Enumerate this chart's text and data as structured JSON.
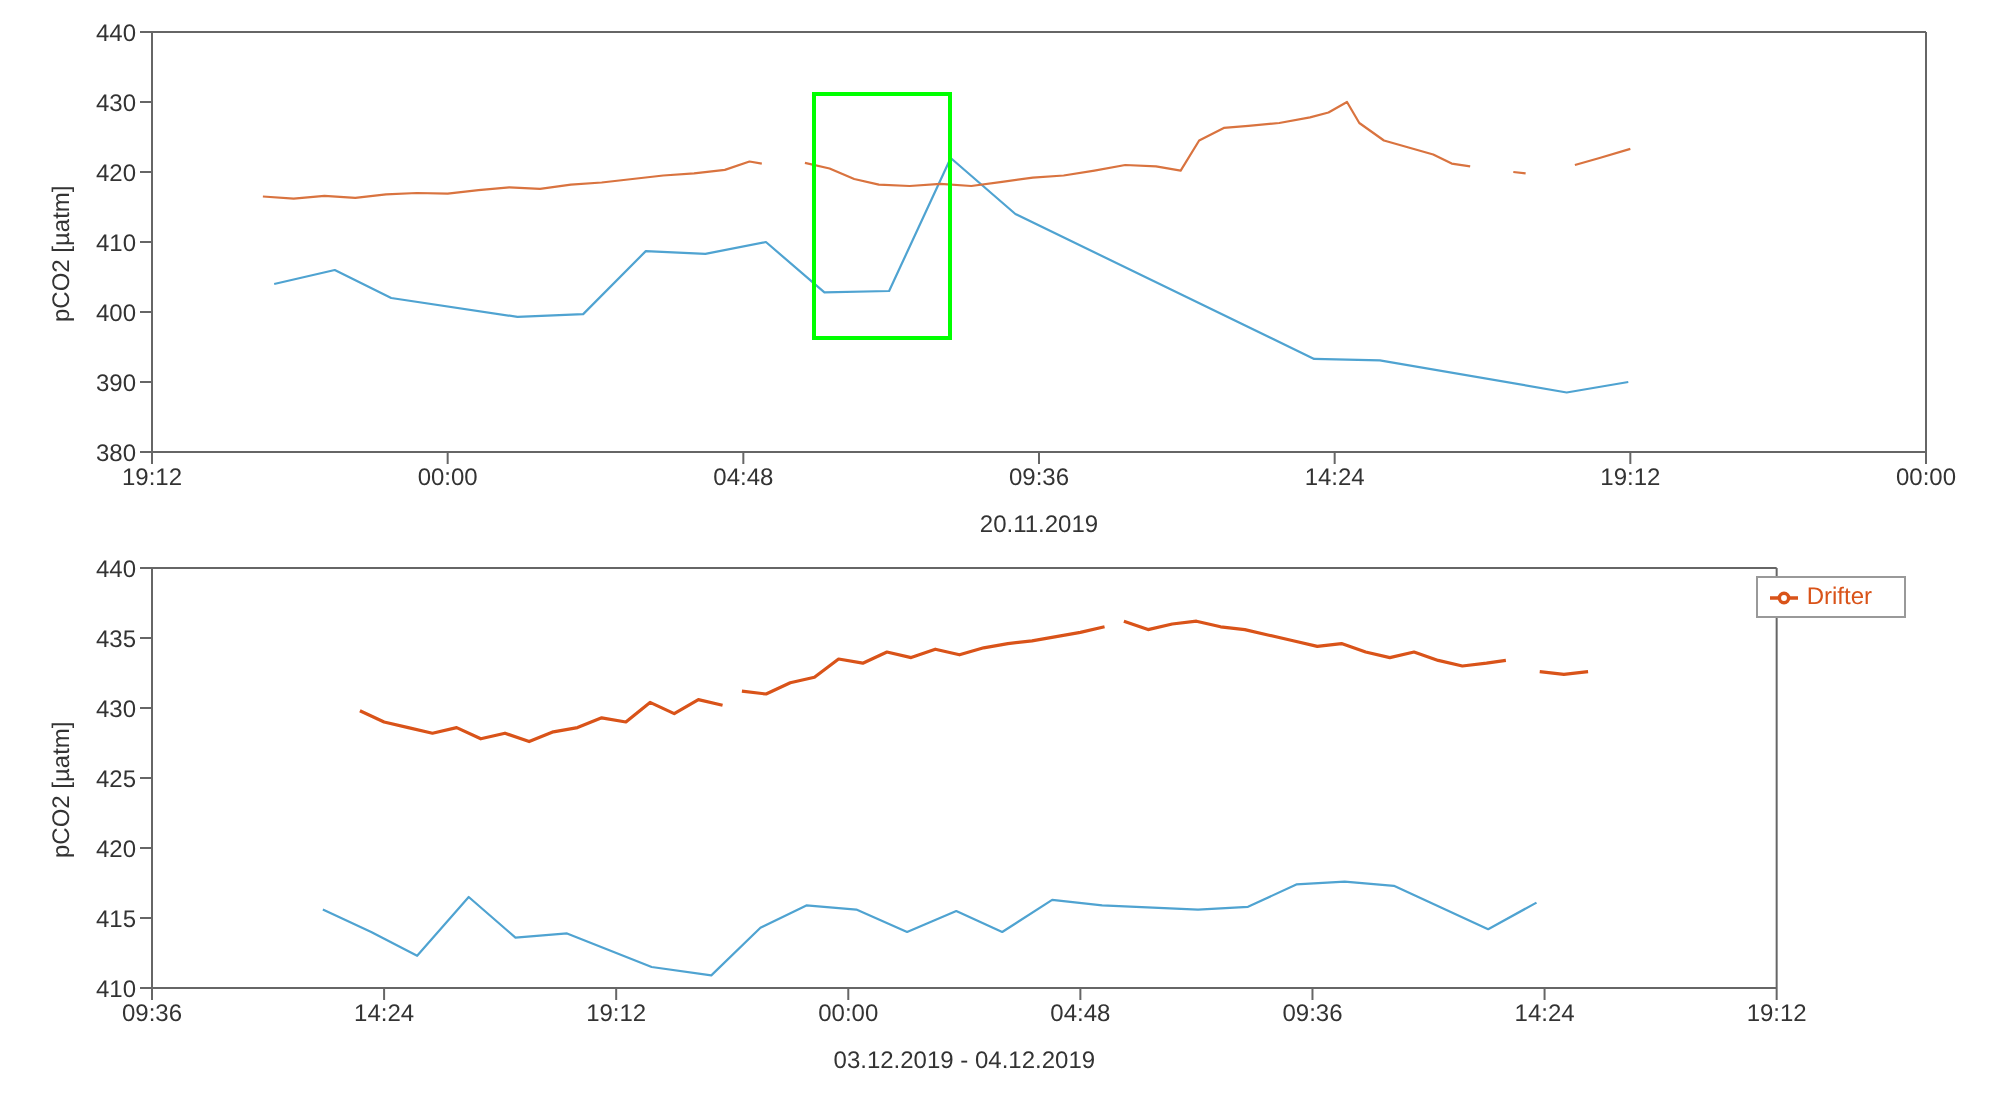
{
  "chart_data": [
    {
      "type": "line",
      "xlabel": "20.11.2019",
      "ylabel": "pCO2 [µatm]",
      "xlim": [
        "2019-11-19T19:12",
        "2019-11-21T00:00"
      ],
      "xticks": [
        {
          "value": "2019-11-19T19:12",
          "label": "19:12"
        },
        {
          "value": "2019-11-20T00:00",
          "label": "00:00"
        },
        {
          "value": "2019-11-20T04:48",
          "label": "04:48"
        },
        {
          "value": "2019-11-20T09:36",
          "label": "09:36"
        },
        {
          "value": "2019-11-20T14:24",
          "label": "14:24"
        },
        {
          "value": "2019-11-20T19:12",
          "label": "19:12"
        },
        {
          "value": "2019-11-21T00:00",
          "label": "00:00"
        }
      ],
      "ylim": [
        380,
        440
      ],
      "yticks": [
        380,
        390,
        400,
        410,
        420,
        430,
        440
      ],
      "legend": false,
      "series": [
        {
          "color": "#4fa3d1",
          "x": [
            "2019-11-19T21:11",
            "2019-11-19T22:10",
            "2019-11-19T23:05",
            "2019-11-20T01:08",
            "2019-11-20T02:12",
            "2019-11-20T03:13",
            "2019-11-20T04:11",
            "2019-11-20T05:10",
            "2019-11-20T06:07",
            "2019-11-20T07:10",
            "2019-11-20T08:10",
            "2019-11-20T09:13",
            "2019-11-20T14:04",
            "2019-11-20T15:08",
            "2019-11-20T18:10",
            "2019-11-20T19:10"
          ],
          "values": [
            404,
            406,
            402,
            399.3,
            399.7,
            408.7,
            408.3,
            410,
            402.8,
            403,
            422,
            414,
            393.3,
            393.1,
            388.5,
            390
          ]
        },
        {
          "color": "#d9733f",
          "x": [
            "2019-11-19T21:00",
            "2019-11-19T21:30",
            "2019-11-19T22:00",
            "2019-11-19T22:30",
            "2019-11-19T23:00",
            "2019-11-19T23:30",
            "2019-11-20T00:00",
            "2019-11-20T00:30",
            "2019-11-20T01:00",
            "2019-11-20T01:30",
            "2019-11-20T02:00",
            "2019-11-20T02:30",
            "2019-11-20T03:00",
            "2019-11-20T03:30",
            "2019-11-20T04:00",
            "2019-11-20T04:30",
            "2019-11-20T04:54",
            "2019-11-20T05:06",
            "2019-11-20T05:24",
            "2019-11-20T05:48",
            "2019-11-20T06:12",
            "2019-11-20T06:36",
            "2019-11-20T07:00",
            "2019-11-20T07:30",
            "2019-11-20T08:00",
            "2019-11-20T08:30",
            "2019-11-20T09:00",
            "2019-11-20T09:30",
            "2019-11-20T10:00",
            "2019-11-20T10:30",
            "2019-11-20T11:00",
            "2019-11-20T11:30",
            "2019-11-20T11:54",
            "2019-11-20T12:12",
            "2019-11-20T12:36",
            "2019-11-20T13:00",
            "2019-11-20T13:30",
            "2019-11-20T14:00",
            "2019-11-20T14:18",
            "2019-11-20T14:36",
            "2019-11-20T14:48",
            "2019-11-20T15:12",
            "2019-11-20T15:36",
            "2019-11-20T16:00",
            "2019-11-20T16:18",
            "2019-11-20T16:36",
            "2019-11-20T17:00",
            "2019-11-20T17:18",
            "2019-11-20T17:30",
            "2019-11-20T17:54",
            "2019-11-20T18:18",
            "2019-11-20T18:42",
            "2019-11-20T19:12"
          ],
          "values": [
            416.5,
            416.2,
            416.6,
            416.3,
            416.8,
            417,
            416.9,
            417.4,
            417.8,
            417.6,
            418.2,
            418.5,
            419,
            419.5,
            419.8,
            420.3,
            421.5,
            421.2,
            null,
            421.3,
            420.5,
            419,
            418.2,
            418,
            418.3,
            418,
            418.6,
            419.2,
            419.5,
            420.2,
            421,
            420.8,
            420.2,
            424.5,
            426.3,
            426.6,
            427,
            427.8,
            428.5,
            430,
            427,
            424.5,
            423.5,
            422.5,
            421.2,
            420.8,
            null,
            420,
            419.8,
            null,
            421,
            422,
            423.3
          ]
        }
      ]
    },
    {
      "type": "line",
      "xlabel": "03.12.2019 - 04.12.2019",
      "ylabel": "pCO2 [µatm]",
      "xlim": [
        "2019-12-03T09:36",
        "2019-12-04T19:12"
      ],
      "xticks": [
        {
          "value": "2019-12-03T09:36",
          "label": "09:36"
        },
        {
          "value": "2019-12-03T14:24",
          "label": "14:24"
        },
        {
          "value": "2019-12-03T19:12",
          "label": "19:12"
        },
        {
          "value": "2019-12-04T00:00",
          "label": "00:00"
        },
        {
          "value": "2019-12-04T04:48",
          "label": "04:48"
        },
        {
          "value": "2019-12-04T09:36",
          "label": "09:36"
        },
        {
          "value": "2019-12-04T14:24",
          "label": "14:24"
        },
        {
          "value": "2019-12-04T19:12",
          "label": "19:12"
        }
      ],
      "ylim": [
        410,
        440
      ],
      "yticks": [
        410,
        415,
        420,
        425,
        430,
        435,
        440
      ],
      "legend": "top right",
      "series": [
        {
          "color": "#4fa3d1",
          "x": [
            "2019-12-03T13:08",
            "2019-12-03T14:08",
            "2019-12-03T15:05",
            "2019-12-03T16:09",
            "2019-12-03T17:07",
            "2019-12-03T18:11",
            "2019-12-03T19:56",
            "2019-12-03T21:10",
            "2019-12-03T22:11",
            "2019-12-03T23:08",
            "2019-12-04T00:10",
            "2019-12-04T01:13",
            "2019-12-04T02:14",
            "2019-12-04T03:11",
            "2019-12-04T04:13",
            "2019-12-04T05:15",
            "2019-12-04T07:14",
            "2019-12-04T08:16",
            "2019-12-04T09:16",
            "2019-12-04T10:16",
            "2019-12-04T11:17",
            "2019-12-04T13:14",
            "2019-12-04T14:14"
          ],
          "values": [
            415.6,
            414,
            412.3,
            416.5,
            413.6,
            413.9,
            411.5,
            410.9,
            414.3,
            415.9,
            415.6,
            414,
            415.5,
            414,
            416.3,
            415.9,
            415.6,
            415.8,
            417.4,
            417.6,
            417.3,
            414.2,
            416.1
          ]
        },
        {
          "name": "Drifter",
          "color": "#d95319",
          "x": [
            "2019-12-03T13:54",
            "2019-12-03T14:24",
            "2019-12-03T14:54",
            "2019-12-03T15:24",
            "2019-12-03T15:54",
            "2019-12-03T16:24",
            "2019-12-03T16:54",
            "2019-12-03T17:24",
            "2019-12-03T17:54",
            "2019-12-03T18:24",
            "2019-12-03T18:54",
            "2019-12-03T19:24",
            "2019-12-03T19:54",
            "2019-12-03T20:24",
            "2019-12-03T20:54",
            "2019-12-03T21:24",
            "2019-12-03T21:36",
            "2019-12-03T21:48",
            "2019-12-03T22:18",
            "2019-12-03T22:48",
            "2019-12-03T23:18",
            "2019-12-03T23:48",
            "2019-12-04T00:18",
            "2019-12-04T00:48",
            "2019-12-04T01:18",
            "2019-12-04T01:48",
            "2019-12-04T02:18",
            "2019-12-04T02:48",
            "2019-12-04T03:18",
            "2019-12-04T03:48",
            "2019-12-04T04:18",
            "2019-12-04T04:48",
            "2019-12-04T05:18",
            "2019-12-04T05:30",
            "2019-12-04T05:42",
            "2019-12-04T06:12",
            "2019-12-04T06:42",
            "2019-12-04T07:12",
            "2019-12-04T07:42",
            "2019-12-04T08:12",
            "2019-12-04T08:42",
            "2019-12-04T09:12",
            "2019-12-04T09:42",
            "2019-12-04T10:12",
            "2019-12-04T10:42",
            "2019-12-04T11:12",
            "2019-12-04T11:42",
            "2019-12-04T12:12",
            "2019-12-04T12:42",
            "2019-12-04T13:12",
            "2019-12-04T13:36",
            "2019-12-04T13:48",
            "2019-12-04T14:18",
            "2019-12-04T14:48",
            "2019-12-04T15:18"
          ],
          "values": [
            429.8,
            429,
            428.6,
            428.2,
            428.6,
            427.8,
            428.2,
            427.6,
            428.3,
            428.6,
            429.3,
            429,
            430.4,
            429.6,
            430.6,
            430.2,
            null,
            431.2,
            431,
            431.8,
            432.2,
            433.5,
            433.2,
            434,
            433.6,
            434.2,
            433.8,
            434.3,
            434.6,
            434.8,
            435.1,
            435.4,
            435.8,
            null,
            436.2,
            435.6,
            436,
            436.2,
            435.8,
            435.6,
            435.2,
            434.8,
            434.4,
            434.6,
            434,
            433.6,
            434,
            433.4,
            433,
            433.2,
            433.4,
            null,
            432.6,
            432.4,
            432.6
          ]
        }
      ]
    }
  ]
}
